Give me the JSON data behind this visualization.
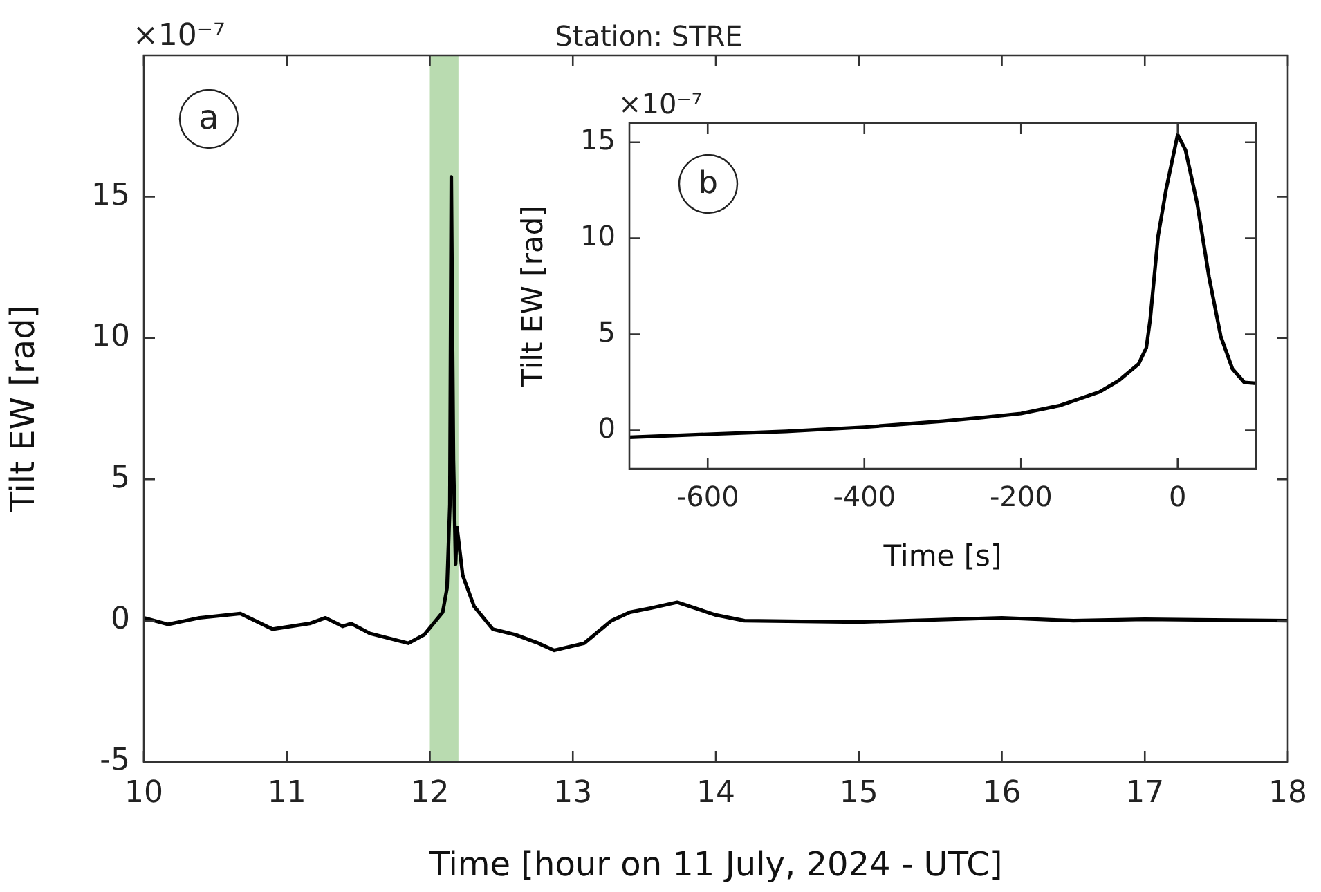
{
  "chart_data": [
    {
      "type": "line",
      "title": "Station: STRE",
      "xlabel": "Time [hour on 11 July, 2024 - UTC]",
      "ylabel": "Tilt EW [rad]",
      "annotations": [
        "×10⁻⁷",
        "a"
      ],
      "x": [
        10,
        10.17,
        10.39,
        10.675,
        10.9,
        11.16,
        11.27,
        11.39,
        11.45,
        11.58,
        11.85,
        11.96,
        12.09,
        12.12,
        12.14,
        12.15,
        12.165,
        12.18,
        12.19,
        12.23,
        12.31,
        12.44,
        12.6,
        12.76,
        12.87,
        13.08,
        13.27,
        13.4,
        13.55,
        13.73,
        14,
        14.2,
        15,
        16,
        16.5,
        17,
        18
      ],
      "series": [
        {
          "color": "#000000",
          "values": [
            0.1,
            -0.13,
            0.1,
            0.25,
            -0.3,
            -0.1,
            0.1,
            -0.2,
            -0.1,
            -0.45,
            -0.8,
            -0.5,
            0.3,
            1.15,
            4.1,
            15.7,
            5.7,
            2,
            3.3,
            1.6,
            0.5,
            -0.3,
            -0.5,
            -0.8,
            -1.05,
            -0.8,
            0,
            0.3,
            0.45,
            0.65,
            0.2,
            0,
            -0.05,
            0.1,
            0,
            0.05,
            0
          ]
        }
      ],
      "bands": [
        {
          "axis": "x",
          "from": 12,
          "to": 12.2,
          "color": "#b9dbb0"
        }
      ],
      "xlim": [
        10,
        18
      ],
      "xticks": [
        10,
        11,
        12,
        13,
        14,
        15,
        16,
        17,
        18
      ],
      "ylim": [
        -5,
        20
      ],
      "yticks": [
        -5,
        0,
        5,
        10,
        15
      ],
      "grid": false,
      "legend": false
    },
    {
      "type": "line",
      "xlabel": "Time [s]",
      "ylabel": "Tilt EW [rad]",
      "annotations": [
        "×10⁻⁷",
        "b"
      ],
      "x": [
        -700,
        -600,
        -500,
        -400,
        -300,
        -250,
        -200,
        -150,
        -100,
        -75,
        -50,
        -40,
        -35,
        -25,
        -15,
        0,
        10,
        25,
        40,
        55,
        70,
        85,
        100
      ],
      "series": [
        {
          "color": "#000000",
          "values": [
            -0.36,
            -0.2,
            -0.05,
            0.17,
            0.48,
            0.67,
            0.88,
            1.3,
            2,
            2.6,
            3.45,
            4.3,
            5.8,
            10.1,
            12.5,
            15.4,
            14.6,
            11.8,
            8,
            4.9,
            3.2,
            2.5,
            2.45
          ]
        }
      ],
      "xlim": [
        -700,
        100
      ],
      "xticks": [
        -600,
        -400,
        -200,
        0
      ],
      "ylim": [
        -2,
        16
      ],
      "yticks": [
        0,
        5,
        10,
        15
      ],
      "grid": false,
      "legend": false
    }
  ]
}
